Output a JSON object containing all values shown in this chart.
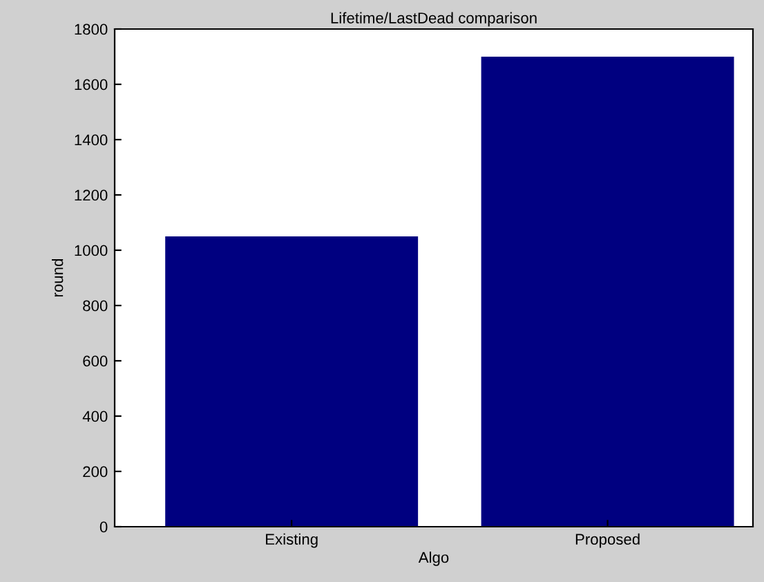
{
  "chart_data": {
    "type": "bar",
    "title": "Lifetime/LastDead comparison",
    "xlabel": "Algo",
    "ylabel": "round",
    "categories": [
      "Existing",
      "Proposed"
    ],
    "values": [
      1050,
      1700
    ],
    "color": "#000080",
    "ylim": [
      0,
      1800
    ],
    "yticks": [
      0,
      200,
      400,
      600,
      800,
      1000,
      1200,
      1400,
      1600,
      1800
    ],
    "grid": false
  }
}
